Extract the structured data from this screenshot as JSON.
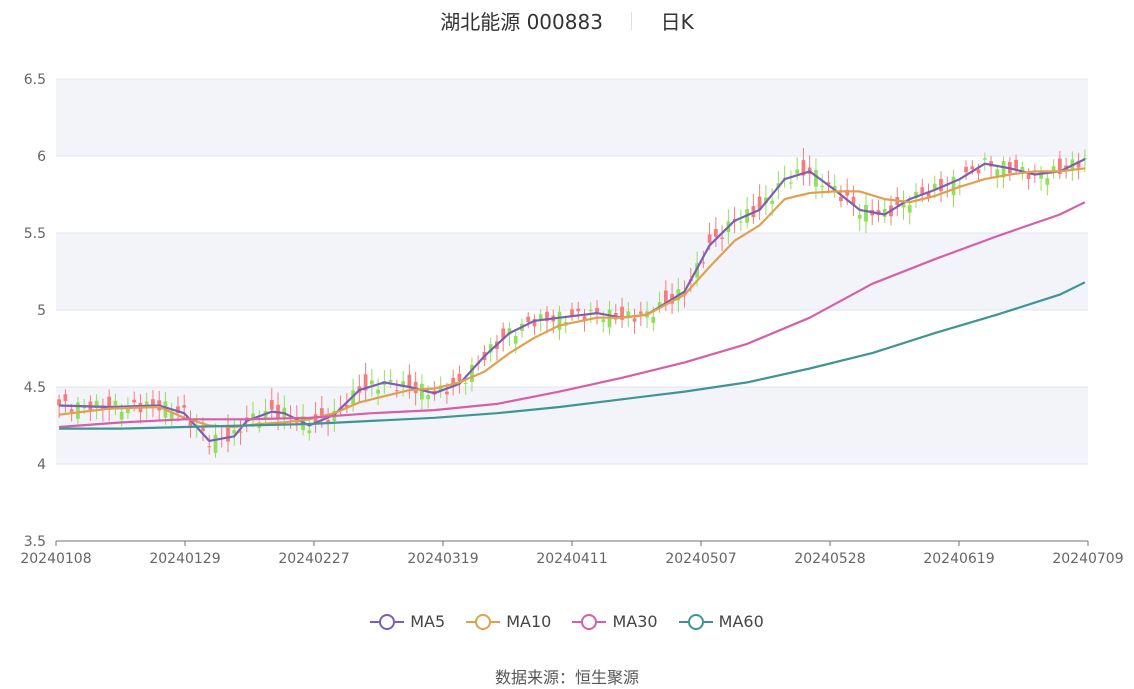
{
  "title": {
    "stock": "湖北能源 000883",
    "period": "日K"
  },
  "source": {
    "label": "数据来源：",
    "value": "恒生聚源"
  },
  "colors": {
    "up": "#f47c7c",
    "down": "#91e05c",
    "ma5": "#7b5fb5",
    "ma10": "#e0a050",
    "ma30": "#d65fa8",
    "ma60": "#3e9593",
    "grid": "#e3e6f0",
    "band": "#f3f4fa"
  },
  "chart_data": {
    "type": "candlestick",
    "ylim": [
      3.5,
      6.5
    ],
    "yticks": [
      "3.5",
      "4",
      "4.5",
      "5",
      "5.5",
      "6",
      "6.5"
    ],
    "xticks": [
      "20240108",
      "20240129",
      "20240227",
      "20240319",
      "20240411",
      "20240507",
      "20240528",
      "20240619",
      "20240709"
    ],
    "series": [
      {
        "name": "MA5",
        "key": "ma5",
        "x": [
          0,
          8,
          16,
          20,
          24,
          28,
          30,
          34,
          36,
          40,
          44,
          48,
          52,
          56,
          60,
          64,
          68,
          72,
          76,
          80,
          86,
          90,
          94,
          100,
          104,
          108,
          112,
          116,
          120,
          124,
          128,
          132,
          136,
          140,
          144,
          148,
          152,
          156,
          160,
          164
        ],
        "values": [
          4.38,
          4.37,
          4.38,
          4.33,
          4.15,
          4.18,
          4.28,
          4.34,
          4.33,
          4.25,
          4.32,
          4.48,
          4.53,
          4.5,
          4.46,
          4.52,
          4.7,
          4.85,
          4.93,
          4.95,
          4.98,
          4.95,
          4.97,
          5.12,
          5.42,
          5.58,
          5.65,
          5.85,
          5.9,
          5.78,
          5.65,
          5.62,
          5.72,
          5.78,
          5.85,
          5.95,
          5.92,
          5.88,
          5.9,
          5.98
        ]
      },
      {
        "name": "MA10",
        "key": "ma10",
        "x": [
          0,
          8,
          16,
          20,
          24,
          28,
          32,
          36,
          40,
          44,
          48,
          52,
          56,
          60,
          64,
          68,
          72,
          76,
          80,
          86,
          90,
          94,
          100,
          104,
          108,
          112,
          116,
          120,
          124,
          128,
          132,
          136,
          140,
          144,
          148,
          152,
          156,
          160,
          164
        ],
        "values": [
          4.32,
          4.36,
          4.37,
          4.3,
          4.25,
          4.24,
          4.26,
          4.27,
          4.29,
          4.33,
          4.4,
          4.44,
          4.48,
          4.49,
          4.53,
          4.6,
          4.72,
          4.82,
          4.9,
          4.95,
          4.95,
          4.97,
          5.1,
          5.28,
          5.45,
          5.55,
          5.72,
          5.76,
          5.77,
          5.77,
          5.72,
          5.7,
          5.74,
          5.8,
          5.85,
          5.88,
          5.9,
          5.9,
          5.92
        ]
      },
      {
        "name": "MA30",
        "key": "ma30",
        "x": [
          0,
          10,
          20,
          30,
          40,
          50,
          60,
          70,
          80,
          90,
          100,
          110,
          120,
          130,
          140,
          150,
          160,
          164
        ],
        "values": [
          4.24,
          4.27,
          4.29,
          4.29,
          4.3,
          4.33,
          4.35,
          4.39,
          4.47,
          4.56,
          4.66,
          4.78,
          4.95,
          5.17,
          5.33,
          5.48,
          5.62,
          5.7
        ]
      },
      {
        "name": "MA60",
        "key": "ma60",
        "x": [
          0,
          10,
          20,
          30,
          40,
          50,
          60,
          70,
          80,
          90,
          100,
          110,
          120,
          130,
          140,
          150,
          160,
          164
        ],
        "values": [
          4.23,
          4.23,
          4.24,
          4.25,
          4.26,
          4.28,
          4.3,
          4.33,
          4.37,
          4.42,
          4.47,
          4.53,
          4.62,
          4.72,
          4.85,
          4.97,
          5.1,
          5.18
        ]
      }
    ]
  }
}
